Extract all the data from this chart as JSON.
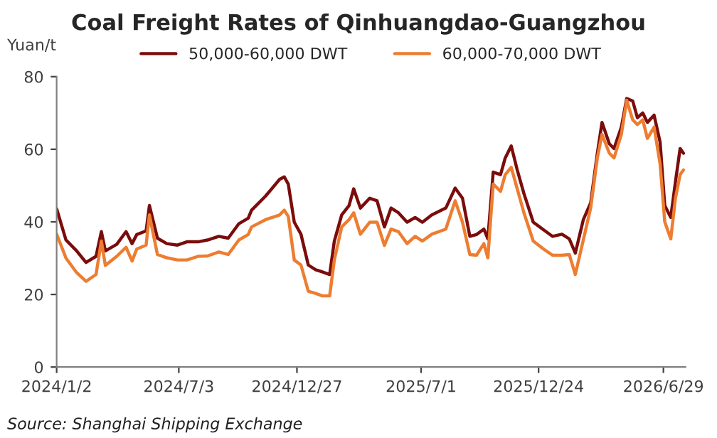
{
  "chart_data": {
    "type": "line",
    "title": "Coal Freight Rates of Qinhuangdao-Guangzhou",
    "ylabel": "Yuan/t",
    "annotations": [
      "Source: Shanghai Shipping Exchange"
    ],
    "x": [
      "2024-01-02",
      "2024-01-16",
      "2024-02-01",
      "2024-02-15",
      "2024-03-01",
      "2024-03-09",
      "2024-03-15",
      "2024-04-01",
      "2024-04-15",
      "2024-04-24",
      "2024-05-01",
      "2024-05-15",
      "2024-05-20",
      "2024-06-01",
      "2024-06-15",
      "2024-07-01",
      "2024-07-15",
      "2024-08-01",
      "2024-08-15",
      "2024-09-01",
      "2024-09-15",
      "2024-10-01",
      "2024-10-15",
      "2024-10-20",
      "2024-11-10",
      "2024-12-01",
      "2024-12-08",
      "2024-12-14",
      "2024-12-23",
      "2025-01-02",
      "2025-01-13",
      "2025-01-24",
      "2025-02-03",
      "2025-02-14",
      "2025-02-21",
      "2025-03-04",
      "2025-03-15",
      "2025-03-22",
      "2025-04-01",
      "2025-04-15",
      "2025-04-26",
      "2025-05-07",
      "2025-05-17",
      "2025-05-28",
      "2025-06-10",
      "2025-06-22",
      "2025-07-03",
      "2025-07-17",
      "2025-08-07",
      "2025-08-21",
      "2025-09-01",
      "2025-09-12",
      "2025-09-22",
      "2025-10-03",
      "2025-10-09",
      "2025-10-17",
      "2025-10-28",
      "2025-11-04",
      "2025-11-13",
      "2025-11-22",
      "2025-12-02",
      "2025-12-16",
      "2025-12-30",
      "2026-01-14",
      "2026-01-28",
      "2026-02-08",
      "2026-02-17",
      "2026-03-01",
      "2026-03-12",
      "2026-03-22",
      "2026-03-29",
      "2026-04-09",
      "2026-04-16",
      "2026-04-27",
      "2026-05-05",
      "2026-05-14",
      "2026-05-21",
      "2026-05-29",
      "2026-06-05",
      "2026-06-15",
      "2026-06-24",
      "2026-07-01",
      "2026-07-10",
      "2026-07-17",
      "2026-07-24",
      "2026-07-29"
    ],
    "series": [
      {
        "name": "50,000-60,000 DWT",
        "color": "#7b0c0c",
        "values": [
          43.6,
          35,
          32,
          28.8,
          30.5,
          37.3,
          32,
          33.8,
          37.3,
          34,
          36.5,
          37.5,
          44.5,
          35.5,
          34,
          33.6,
          34.5,
          34.5,
          35,
          36,
          35.5,
          39.5,
          41,
          43.2,
          47.1,
          51.7,
          52.4,
          50.4,
          39.9,
          36.6,
          28.1,
          26.8,
          26.2,
          25.5,
          34.7,
          41.9,
          44.5,
          49.1,
          43.8,
          46.5,
          45.8,
          38.6,
          43.8,
          42.5,
          39.9,
          41.2,
          39.9,
          41.9,
          43.8,
          49.3,
          46.5,
          36,
          36.5,
          38,
          35.3,
          53.7,
          53,
          57.6,
          60.9,
          54.3,
          47.8,
          39.9,
          38,
          36,
          36.6,
          35.3,
          31.4,
          40.6,
          45.2,
          58.9,
          67.4,
          61.5,
          60.2,
          66.1,
          74,
          73.3,
          68.7,
          70,
          67.4,
          69.4,
          62,
          44.5,
          41.2,
          51,
          60.2,
          58.9
        ]
      },
      {
        "name": "60,000-70,000 DWT",
        "color": "#ed7d31",
        "values": [
          36.6,
          30,
          26,
          23.6,
          25.5,
          34.7,
          28,
          30.5,
          33,
          29.2,
          32.5,
          33.6,
          41.9,
          31,
          30.1,
          29.5,
          29.5,
          30.5,
          30.6,
          31.7,
          31,
          35,
          36.5,
          38.6,
          40.6,
          41.9,
          43.2,
          41.5,
          29.5,
          28.1,
          20.9,
          20.3,
          19.6,
          19.6,
          29.5,
          38.6,
          40.6,
          42.5,
          36.6,
          39.9,
          39.9,
          33.5,
          38,
          37.3,
          34,
          36,
          34.7,
          36.6,
          38,
          45.8,
          39.9,
          31,
          30.8,
          34,
          30.1,
          50.4,
          48.4,
          53,
          55,
          49.1,
          42.5,
          34.7,
          32.7,
          30.8,
          30.8,
          31,
          25.5,
          35,
          43.8,
          57.6,
          64.1,
          58.9,
          57.6,
          64.1,
          73.5,
          68.1,
          66.8,
          68.1,
          63,
          66.1,
          56,
          40,
          35.3,
          46.5,
          53,
          54.3
        ]
      }
    ],
    "xlim": [
      "2024-01-02",
      "2026-08-01"
    ],
    "xticks": [
      {
        "value": "2024-01-02",
        "label": "2024/1/2"
      },
      {
        "value": "2024-07-03",
        "label": "2024/7/3"
      },
      {
        "value": "2024-12-27",
        "label": "2024/12/27"
      },
      {
        "value": "2025-07-01",
        "label": "2025/7/1"
      },
      {
        "value": "2025-12-24",
        "label": "2025/12/24"
      },
      {
        "value": "2026-06-29",
        "label": "2026/6/29"
      }
    ],
    "ylim": [
      0,
      80
    ],
    "yticks": [
      0,
      20,
      40,
      60,
      80
    ],
    "grid": false,
    "legend": "top",
    "line_style": "solid",
    "marker": "none"
  }
}
